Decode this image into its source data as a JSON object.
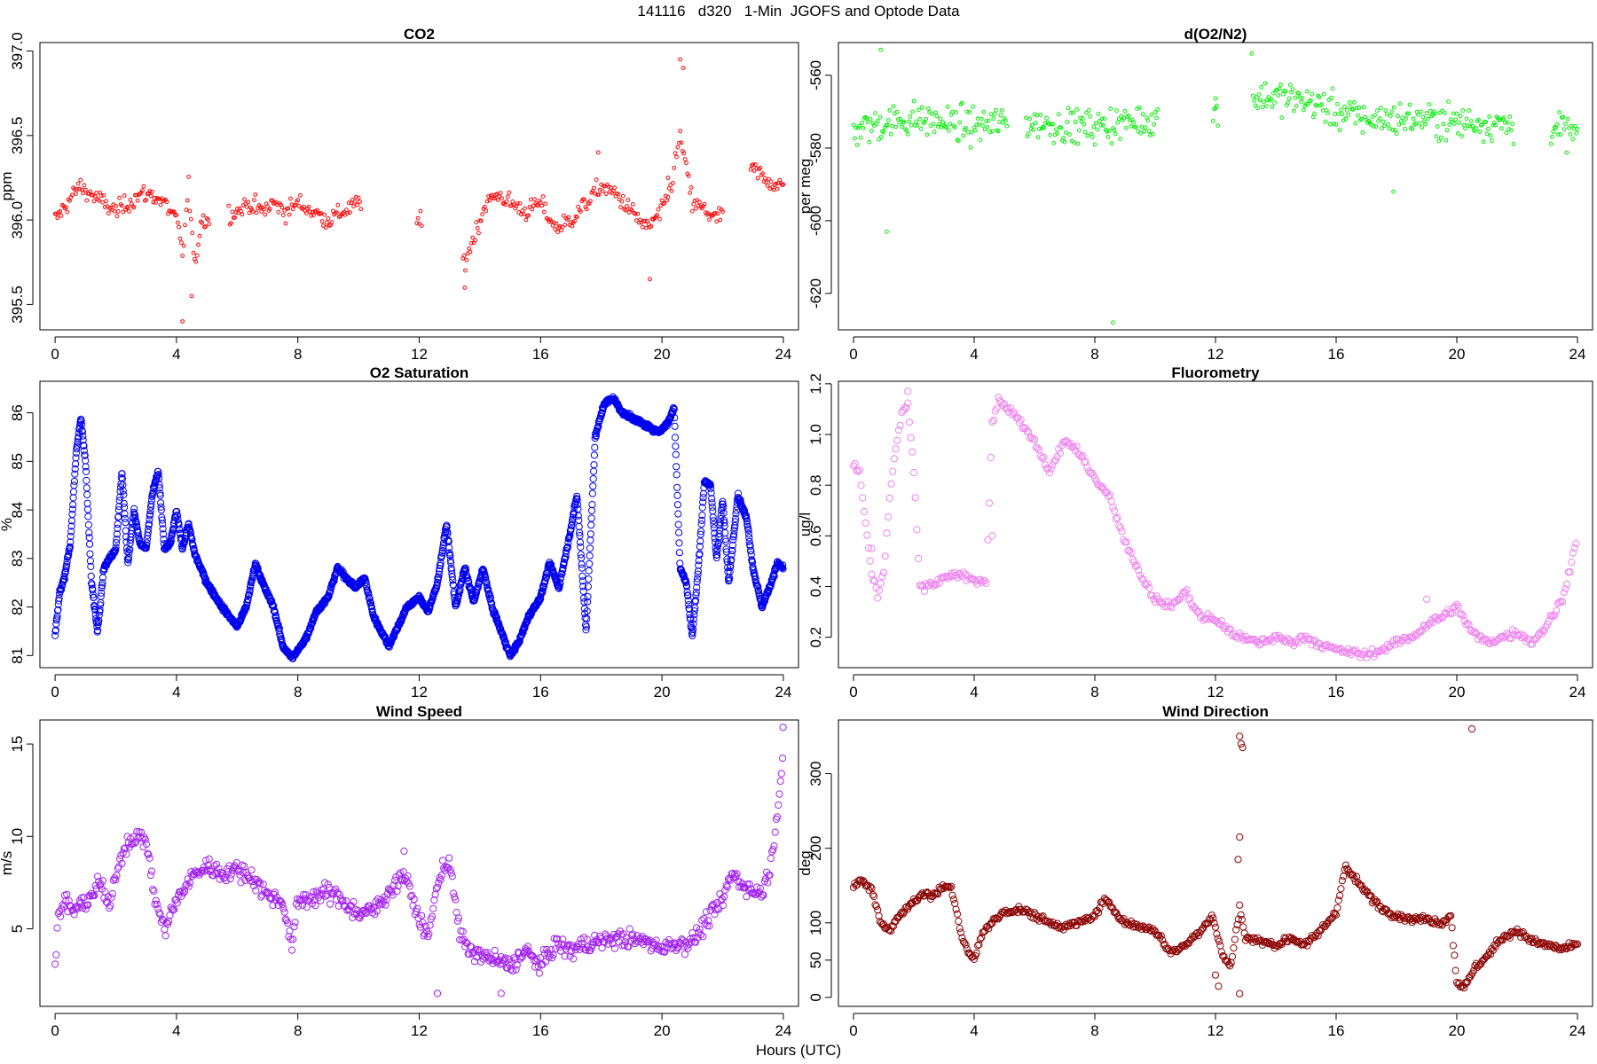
{
  "figure": {
    "title": "141116   d320   1-Min  JGOFS and Optode Data",
    "xlabel": "Hours (UTC)"
  },
  "chart_data": [
    {
      "id": "co2",
      "type": "scatter",
      "title": "CO2",
      "ylabel": "ppm",
      "color": "#ff0000",
      "marker_size": "small",
      "xlim": [
        -0.5,
        24.5
      ],
      "ylim": [
        395.35,
        397.05
      ],
      "xticks": [
        0,
        4,
        8,
        12,
        16,
        20,
        24
      ],
      "yticks": [
        395.5,
        396.0,
        396.5,
        397.0
      ],
      "ytick_labels": [
        "395.5",
        "396.0",
        "396.5",
        "397.0"
      ],
      "ytick_rotation": "vertical",
      "series": [
        {
          "trend_x": [
            0,
            0.4,
            0.8,
            1.2,
            1.6,
            2.0,
            2.4,
            2.8,
            3.2,
            3.6,
            4.0,
            4.2,
            4.4,
            4.6,
            4.8,
            5.0,
            6.0,
            6.4,
            6.8,
            7.2,
            7.6,
            8.0,
            8.5,
            9.0,
            9.5,
            10.0,
            11.9,
            13.5,
            13.8,
            14.2,
            14.6,
            15.0,
            15.5,
            16.0,
            16.5,
            17.0,
            17.5,
            18.0,
            18.5,
            19.0,
            19.5,
            20.0,
            20.3,
            20.6,
            21.0,
            21.5,
            21.8,
            23.0,
            23.4,
            23.8,
            24.0
          ],
          "trend_y": [
            396.0,
            396.1,
            396.2,
            396.15,
            396.1,
            396.05,
            396.1,
            396.15,
            396.15,
            396.1,
            396.0,
            395.8,
            396.2,
            395.7,
            396.0,
            396.0,
            396.05,
            396.1,
            396.05,
            396.1,
            396.05,
            396.1,
            396.05,
            396.0,
            396.05,
            396.1,
            396.0,
            395.75,
            395.9,
            396.1,
            396.15,
            396.1,
            396.05,
            396.1,
            395.95,
            396.0,
            396.1,
            396.2,
            396.15,
            396.05,
            395.95,
            396.05,
            396.2,
            396.5,
            396.1,
            396.05,
            396.0,
            396.3,
            396.25,
            396.2,
            396.2
          ],
          "noise": 0.07,
          "gaps": [
            [
              10.1,
              11.9
            ],
            [
              12.1,
              13.4
            ],
            [
              5.1,
              5.7
            ],
            [
              22.0,
              22.9
            ]
          ],
          "outliers": [
            [
              20.6,
              396.95
            ],
            [
              20.7,
              396.9
            ],
            [
              4.2,
              395.4
            ],
            [
              4.5,
              395.55
            ],
            [
              13.5,
              395.6
            ],
            [
              17.9,
              396.4
            ],
            [
              19.6,
              395.65
            ],
            [
              20.2,
              396.25
            ]
          ],
          "step": 0.04
        }
      ]
    },
    {
      "id": "o2n2",
      "type": "scatter",
      "title": "d(O2/N2)",
      "ylabel": "per meg",
      "color": "#00ee00",
      "marker_size": "small",
      "xlim": [
        -0.5,
        24.5
      ],
      "ylim": [
        -630,
        -551
      ],
      "xticks": [
        0,
        4,
        8,
        12,
        16,
        20,
        24
      ],
      "yticks": [
        -620,
        -600,
        -580,
        -560
      ],
      "ytick_labels": [
        "-620",
        "-600",
        "-580",
        "-560"
      ],
      "ytick_rotation": "vertical",
      "series": [
        {
          "trend_x": [
            0,
            1,
            2,
            3,
            4,
            5,
            6,
            7,
            8,
            9,
            10,
            12,
            13.3,
            14,
            15,
            16,
            17,
            18,
            19,
            20,
            21,
            22,
            23.2,
            24
          ],
          "trend_y": [
            -575,
            -573,
            -572,
            -573,
            -574,
            -573,
            -573,
            -574,
            -574,
            -573,
            -572,
            -569,
            -566,
            -566,
            -567,
            -570,
            -572,
            -572,
            -572,
            -573,
            -573,
            -574,
            -575,
            -576
          ],
          "noise": 6,
          "gaps": [
            [
              5.1,
              5.7
            ],
            [
              10.1,
              11.9
            ],
            [
              12.1,
              13.2
            ],
            [
              21.9,
              23.1
            ]
          ],
          "outliers": [
            [
              0.9,
              -553
            ],
            [
              1.1,
              -603
            ],
            [
              8.6,
              -628
            ],
            [
              12.0,
              -569
            ],
            [
              13.2,
              -554
            ],
            [
              17.9,
              -592
            ]
          ],
          "step": 0.04
        }
      ]
    },
    {
      "id": "o2sat",
      "type": "scatter",
      "title": "O2 Saturation",
      "ylabel": "%",
      "color": "#0000ee",
      "marker_size": "large",
      "xlim": [
        -0.5,
        24.5
      ],
      "ylim": [
        80.75,
        86.65
      ],
      "xticks": [
        0,
        4,
        8,
        12,
        16,
        20,
        24
      ],
      "yticks": [
        81,
        82,
        83,
        84,
        85,
        86
      ],
      "ytick_labels": [
        "81",
        "82",
        "83",
        "84",
        "85",
        "86"
      ],
      "ytick_rotation": "vertical",
      "series": [
        {
          "trend_x": [
            0,
            0.15,
            0.3,
            0.5,
            0.7,
            0.85,
            1.0,
            1.2,
            1.4,
            1.6,
            1.8,
            2.0,
            2.2,
            2.4,
            2.6,
            2.8,
            3.0,
            3.2,
            3.4,
            3.6,
            3.8,
            4.0,
            4.2,
            4.4,
            4.6,
            5.0,
            5.5,
            6.0,
            6.3,
            6.6,
            6.9,
            7.2,
            7.5,
            7.8,
            8.0,
            8.3,
            8.6,
            9.0,
            9.3,
            9.6,
            9.9,
            10.2,
            10.5,
            11.0,
            11.3,
            11.6,
            12.0,
            12.3,
            12.6,
            12.9,
            13.2,
            13.5,
            13.8,
            14.1,
            14.4,
            14.7,
            15.0,
            15.3,
            15.6,
            16.0,
            16.3,
            16.6,
            16.9,
            17.2,
            17.5,
            17.8,
            18.1,
            18.4,
            18.7,
            19.0,
            19.3,
            19.6,
            19.9,
            20.2,
            20.4,
            20.6,
            20.8,
            21.0,
            21.2,
            21.4,
            21.6,
            21.8,
            22.0,
            22.2,
            22.5,
            22.8,
            23.0,
            23.3,
            23.6,
            23.8,
            24.0
          ],
          "trend_y": [
            81.4,
            82.3,
            82.6,
            83.3,
            85.2,
            85.9,
            85.0,
            82.5,
            81.5,
            82.8,
            83.0,
            83.2,
            84.8,
            82.9,
            84.0,
            83.3,
            83.2,
            84.3,
            84.8,
            83.2,
            83.3,
            84.0,
            83.2,
            83.7,
            83.1,
            82.5,
            82.0,
            81.6,
            82.0,
            82.9,
            82.4,
            82.0,
            81.2,
            80.95,
            81.1,
            81.4,
            81.9,
            82.2,
            82.8,
            82.6,
            82.4,
            82.6,
            81.8,
            81.2,
            81.6,
            82.0,
            82.2,
            81.9,
            82.5,
            83.7,
            82.0,
            82.8,
            82.1,
            82.8,
            82.0,
            81.5,
            81.0,
            81.3,
            81.8,
            82.2,
            82.9,
            82.4,
            83.3,
            84.3,
            81.5,
            85.5,
            86.2,
            86.3,
            86.0,
            85.9,
            85.8,
            85.7,
            85.6,
            85.8,
            86.1,
            82.8,
            82.5,
            81.4,
            82.8,
            84.6,
            84.5,
            83.0,
            84.2,
            82.5,
            84.3,
            83.8,
            82.8,
            82.0,
            82.5,
            82.9,
            82.8
          ],
          "noise": 0.06,
          "gaps": [],
          "outliers": [],
          "step": 0.012
        }
      ]
    },
    {
      "id": "fluor",
      "type": "scatter",
      "title": "Fluorometry",
      "ylabel": "ug/l",
      "color": "#ee82ee",
      "marker_size": "large",
      "xlim": [
        -0.5,
        24.5
      ],
      "ylim": [
        0.08,
        1.21
      ],
      "xticks": [
        0,
        4,
        8,
        12,
        16,
        20,
        24
      ],
      "yticks": [
        0.2,
        0.4,
        0.6,
        0.8,
        1.0,
        1.2
      ],
      "ytick_labels": [
        "0.2",
        "0.4",
        "0.6",
        "0.8",
        "1.0",
        "1.2"
      ],
      "ytick_rotation": "vertical",
      "series": [
        {
          "trend_x": [
            0,
            0.2,
            0.4,
            0.6,
            0.8,
            1.0,
            1.2,
            1.4,
            1.6,
            1.8,
            2.0,
            2.2,
            2.5,
            3.0,
            3.5,
            4.0,
            4.4,
            4.6,
            4.8,
            5.0,
            5.5,
            6.0,
            6.5,
            7.0,
            7.5,
            8.0,
            8.5,
            9.0,
            9.5,
            10.0,
            10.5,
            11.0,
            11.5,
            12.0,
            12.5,
            13.0,
            13.5,
            14.0,
            14.5,
            15.0,
            15.5,
            16.0,
            16.5,
            17.0,
            17.5,
            18.0,
            18.5,
            19.0,
            19.5,
            20.0,
            20.5,
            21.0,
            21.5,
            22.0,
            22.5,
            23.0,
            23.5,
            24.0
          ],
          "trend_y": [
            0.88,
            0.85,
            0.65,
            0.45,
            0.36,
            0.45,
            0.75,
            0.95,
            1.08,
            1.12,
            0.85,
            0.4,
            0.4,
            0.43,
            0.45,
            0.43,
            0.42,
            1.05,
            1.13,
            1.12,
            1.05,
            0.97,
            0.85,
            0.98,
            0.92,
            0.83,
            0.75,
            0.58,
            0.45,
            0.35,
            0.32,
            0.38,
            0.28,
            0.27,
            0.22,
            0.19,
            0.18,
            0.2,
            0.18,
            0.2,
            0.17,
            0.15,
            0.14,
            0.13,
            0.15,
            0.18,
            0.2,
            0.25,
            0.28,
            0.32,
            0.22,
            0.18,
            0.2,
            0.22,
            0.18,
            0.25,
            0.35,
            0.6
          ],
          "noise": 0.02,
          "gaps": [],
          "outliers": [
            [
              0.6,
              0.55
            ],
            [
              1.8,
              1.17
            ],
            [
              4.6,
              0.6
            ],
            [
              19.0,
              0.35
            ]
          ],
          "step": 0.05
        }
      ]
    },
    {
      "id": "windspeed",
      "type": "scatter",
      "title": "Wind Speed",
      "ylabel": "m/s",
      "color": "#a020f0",
      "marker_size": "large",
      "xlim": [
        -0.5,
        24.5
      ],
      "ylim": [
        0.8,
        16.3
      ],
      "xticks": [
        0,
        4,
        8,
        12,
        16,
        20,
        24
      ],
      "yticks": [
        5,
        10,
        15
      ],
      "ytick_labels": [
        "5",
        "10",
        "15"
      ],
      "ytick_rotation": "vertical",
      "series": [
        {
          "trend_x": [
            0,
            0.1,
            0.3,
            0.6,
            1.0,
            1.5,
            1.8,
            2.0,
            2.3,
            2.6,
            3.0,
            3.3,
            3.6,
            4.0,
            4.5,
            5.0,
            5.5,
            6.0,
            6.5,
            7.0,
            7.5,
            7.8,
            8.0,
            8.5,
            9.0,
            9.5,
            10.0,
            10.5,
            11.0,
            11.5,
            12.0,
            12.3,
            12.6,
            13.0,
            13.3,
            13.6,
            14.0,
            14.5,
            15.0,
            15.5,
            16.0,
            16.5,
            17.0,
            17.5,
            18.0,
            18.5,
            19.0,
            19.5,
            20.0,
            20.5,
            21.0,
            21.5,
            22.0,
            22.3,
            22.6,
            23.0,
            23.3,
            23.6,
            23.8,
            24.0
          ],
          "trend_y": [
            3.2,
            5.5,
            6.5,
            6.0,
            6.4,
            7.5,
            6.0,
            8.0,
            9.5,
            10.0,
            9.8,
            6.5,
            5.0,
            6.5,
            7.8,
            8.4,
            8.0,
            8.2,
            7.8,
            6.8,
            6.5,
            4.0,
            6.5,
            6.7,
            7.0,
            6.5,
            5.8,
            6.0,
            7.0,
            8.0,
            5.5,
            4.5,
            7.5,
            8.8,
            5.0,
            3.8,
            3.6,
            3.3,
            3.0,
            3.8,
            3.0,
            4.2,
            3.8,
            4.2,
            4.3,
            4.5,
            4.4,
            4.3,
            4.0,
            4.2,
            4.3,
            5.5,
            6.5,
            8.0,
            7.5,
            7.0,
            7.0,
            8.5,
            11.5,
            14.5
          ],
          "noise": 0.6,
          "gaps": [],
          "outliers": [
            [
              23.99,
              15.9
            ],
            [
              12.6,
              1.5
            ],
            [
              14.7,
              1.5
            ],
            [
              11.5,
              9.2
            ]
          ],
          "step": 0.035
        }
      ]
    },
    {
      "id": "winddir",
      "type": "scatter",
      "title": "Wind Direction",
      "ylabel": "deg",
      "color": "#8b0000",
      "marker_size": "large",
      "xlim": [
        -0.5,
        24.5
      ],
      "ylim": [
        -12,
        372
      ],
      "xticks": [
        0,
        4,
        8,
        12,
        16,
        20,
        24
      ],
      "yticks": [
        0,
        50,
        100,
        200,
        300
      ],
      "ytick_labels": [
        "0",
        "50",
        "100",
        "200",
        "300"
      ],
      "ytick_rotation": "vertical",
      "series": [
        {
          "trend_x": [
            0,
            0.3,
            0.6,
            0.9,
            1.2,
            1.5,
            1.8,
            2.0,
            2.3,
            2.6,
            2.9,
            3.2,
            3.4,
            3.6,
            3.8,
            4.0,
            4.3,
            4.6,
            5.0,
            5.5,
            6.0,
            6.5,
            7.0,
            7.5,
            8.0,
            8.3,
            8.6,
            9.0,
            9.5,
            10.0,
            10.5,
            11.0,
            11.5,
            11.9,
            12.2,
            12.5,
            12.8,
            13.0,
            13.5,
            14.0,
            14.5,
            15.0,
            15.5,
            16.0,
            16.3,
            16.6,
            17.0,
            17.5,
            18.0,
            18.5,
            19.0,
            19.5,
            19.8,
            20.0,
            20.3,
            20.6,
            21.0,
            21.5,
            22.0,
            22.5,
            23.0,
            23.5,
            24.0
          ],
          "trend_y": [
            150,
            155,
            145,
            100,
            90,
            110,
            120,
            130,
            140,
            135,
            145,
            150,
            120,
            80,
            60,
            50,
            90,
            100,
            115,
            118,
            110,
            100,
            95,
            100,
            110,
            130,
            120,
            100,
            95,
            90,
            60,
            70,
            90,
            110,
            60,
            40,
            120,
            80,
            75,
            70,
            80,
            70,
            90,
            115,
            175,
            160,
            140,
            120,
            110,
            105,
            105,
            100,
            110,
            20,
            15,
            40,
            55,
            80,
            90,
            75,
            70,
            65,
            70
          ],
          "noise": 6,
          "gaps": [],
          "outliers": [
            [
              12.8,
              350
            ],
            [
              12.85,
              340
            ],
            [
              12.9,
              335
            ],
            [
              12.8,
              215
            ],
            [
              12.75,
              185
            ],
            [
              12.8,
              5
            ],
            [
              20.5,
              360
            ],
            [
              12.0,
              30
            ],
            [
              12.1,
              15
            ]
          ],
          "step": 0.04
        }
      ]
    }
  ]
}
